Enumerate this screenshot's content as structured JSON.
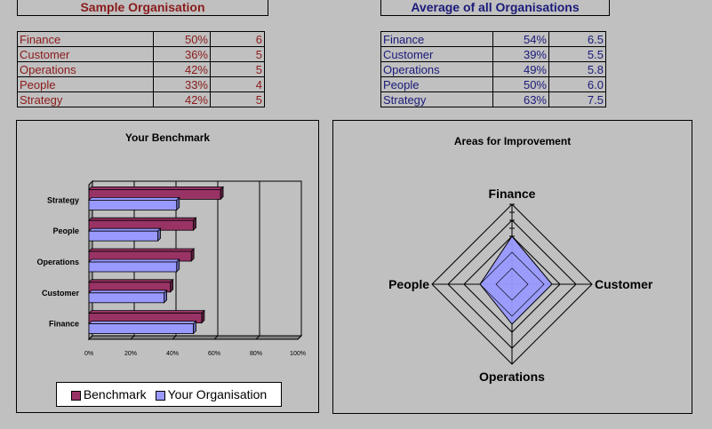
{
  "left_panel": {
    "title": "Sample Organisation",
    "rows": [
      {
        "label": "Finance",
        "pct": "50%",
        "score": "6"
      },
      {
        "label": "Customer",
        "pct": "36%",
        "score": "5"
      },
      {
        "label": "Operations",
        "pct": "42%",
        "score": "5"
      },
      {
        "label": "People",
        "pct": "33%",
        "score": "4"
      },
      {
        "label": "Strategy",
        "pct": "42%",
        "score": "5"
      }
    ]
  },
  "right_panel": {
    "title": "Average of all Organisations",
    "rows": [
      {
        "label": "Finance",
        "pct": "54%",
        "score": "6.5"
      },
      {
        "label": "Customer",
        "pct": "39%",
        "score": "5.5"
      },
      {
        "label": "Operations",
        "pct": "49%",
        "score": "5.8"
      },
      {
        "label": "People",
        "pct": "50%",
        "score": "6.0"
      },
      {
        "label": "Strategy",
        "pct": "63%",
        "score": "7.5"
      }
    ]
  },
  "colors": {
    "benchmark": "#993366",
    "your_org": "#9999ff",
    "sample_text": "#8b1a1a",
    "average_text": "#1a1a7a"
  },
  "chart_data": [
    {
      "type": "bar",
      "orientation": "horizontal",
      "title": "Your Benchmark",
      "categories": [
        "Finance",
        "Customer",
        "Operations",
        "People",
        "Strategy"
      ],
      "series": [
        {
          "name": "Benchmark",
          "values": [
            54,
            39,
            49,
            50,
            63
          ]
        },
        {
          "name": "Your Organisation",
          "values": [
            50,
            36,
            42,
            33,
            42
          ]
        }
      ],
      "xlim": [
        0,
        100
      ],
      "xticks": [
        "0%",
        "20%",
        "40%",
        "60%",
        "80%",
        "100%"
      ],
      "legend": "bottom"
    },
    {
      "type": "radar",
      "title": "Areas for Improvement",
      "axes": [
        "Finance",
        "Customer",
        "Operations",
        "People"
      ],
      "values": [
        6,
        5,
        5,
        4
      ],
      "range": [
        0,
        10
      ],
      "rings": 5
    }
  ]
}
